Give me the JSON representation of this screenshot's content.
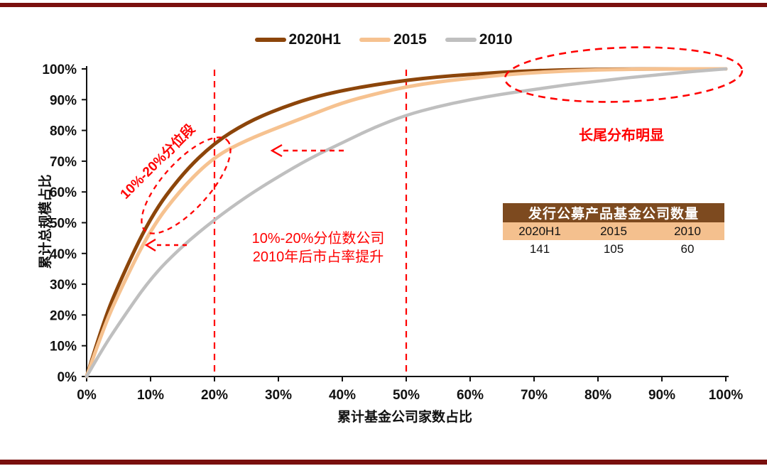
{
  "page": {
    "rule_color": "#7a100e",
    "background": "#ffffff",
    "annotation_color": "#ff0000"
  },
  "chart_data": {
    "type": "line",
    "title": "",
    "xlabel": "累计基金公司家数占比",
    "ylabel": "累计总规模占比",
    "xlim": [
      0,
      100
    ],
    "ylim": [
      0,
      100
    ],
    "grid": false,
    "legend_position": "top-center",
    "x_ticks": [
      "0%",
      "10%",
      "20%",
      "30%",
      "40%",
      "50%",
      "60%",
      "70%",
      "80%",
      "90%",
      "100%"
    ],
    "y_ticks": [
      "0%",
      "10%",
      "20%",
      "30%",
      "40%",
      "50%",
      "60%",
      "70%",
      "80%",
      "90%",
      "100%"
    ],
    "x_tick_values": [
      0,
      10,
      20,
      30,
      40,
      50,
      60,
      70,
      80,
      90,
      100
    ],
    "y_tick_values": [
      0,
      10,
      20,
      30,
      40,
      50,
      60,
      70,
      80,
      90,
      100
    ],
    "x": [
      0,
      2.5,
      5,
      10,
      15,
      20,
      25,
      30,
      35,
      40,
      45,
      50,
      55,
      60,
      65,
      70,
      75,
      80,
      85,
      90,
      95,
      100
    ],
    "series": [
      {
        "name": "2020H1",
        "color": "#8c450a",
        "width": 5,
        "values": [
          0,
          17,
          30,
          52,
          66,
          76,
          82.5,
          87,
          90.5,
          93,
          94.8,
          96.3,
          97.4,
          98.2,
          98.9,
          99.4,
          99.7,
          99.85,
          99.95,
          100,
          100,
          100
        ]
      },
      {
        "name": "2015",
        "color": "#f6c290",
        "width": 5,
        "values": [
          0,
          15,
          27,
          48,
          61.5,
          71.5,
          76.8,
          81,
          85,
          89,
          91.8,
          94.2,
          95.8,
          97,
          98,
          98.8,
          99.3,
          99.7,
          99.9,
          100,
          100,
          100
        ]
      },
      {
        "name": "2010",
        "color": "#bfbfbf",
        "width": 4.5,
        "values": [
          0,
          9,
          17,
          32,
          42.5,
          51,
          58.5,
          65,
          71,
          76,
          81,
          85,
          87.8,
          90,
          91.8,
          93.3,
          94.8,
          96,
          97.2,
          98.2,
          99.2,
          100
        ]
      }
    ]
  },
  "annotations": {
    "band_label": "10%-20%分位段",
    "mid_note_line1": "10%-20%分位数公司",
    "mid_note_line2": "2010年后市占率提升",
    "tail_note": "长尾分布明显",
    "dashed_vlines_x": [
      20,
      50
    ]
  },
  "table": {
    "title": "发行公募产品基金公司数量",
    "columns": [
      "2020H1",
      "2015",
      "2010"
    ],
    "values": [
      "141",
      "105",
      "60"
    ],
    "header_bg": "#7d4a1f",
    "subheader_bg": "#f4c08e"
  }
}
